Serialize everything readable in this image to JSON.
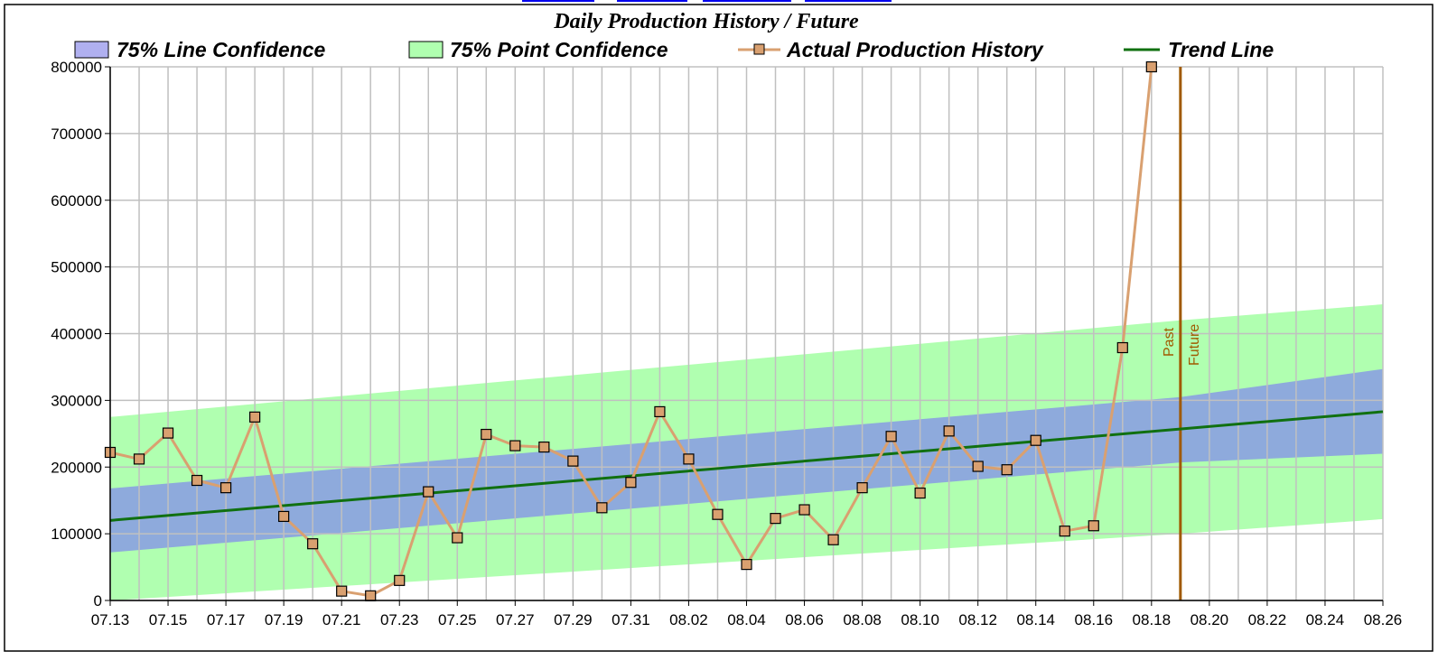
{
  "colors": {
    "line_confidence": "#8eaadc",
    "line_confidence_legend": "#b0b0f0",
    "point_confidence": "#b0ffb0",
    "actual": "#d9a070",
    "marker_fill": "#d9a070",
    "trend": "#107010",
    "divider": "#a05a00",
    "grid": "#c0c0c0"
  },
  "chart_data": {
    "type": "line",
    "title": "Daily Production History / Future",
    "legend": {
      "placement": "top",
      "items": [
        "75% Line Confidence",
        "75% Point Confidence",
        "Actual Production History",
        "Trend Line"
      ]
    },
    "x_start_date": "07.13",
    "x_tick_labels": [
      "07.13",
      "07.15",
      "07.17",
      "07.19",
      "07.21",
      "07.23",
      "07.25",
      "07.27",
      "07.29",
      "07.31",
      "08.02",
      "08.04",
      "08.06",
      "08.08",
      "08.10",
      "08.12",
      "08.14",
      "08.16",
      "08.18",
      "08.20",
      "08.22",
      "08.24",
      "08.26"
    ],
    "ylim": [
      0,
      800000
    ],
    "y_ticks": [
      0,
      100000,
      200000,
      300000,
      400000,
      500000,
      600000,
      700000,
      800000
    ],
    "grid": true,
    "series": [
      {
        "name": "Actual Production History",
        "type": "line-marker",
        "x": [
          "07.13",
          "07.14",
          "07.15",
          "07.16",
          "07.17",
          "07.18",
          "07.19",
          "07.20",
          "07.21",
          "07.22",
          "07.23",
          "07.24",
          "07.25",
          "07.26",
          "07.27",
          "07.28",
          "07.29",
          "07.30",
          "07.31",
          "08.01",
          "08.02",
          "08.03",
          "08.04",
          "08.05",
          "08.06",
          "08.07",
          "08.08",
          "08.09",
          "08.10",
          "08.11",
          "08.12",
          "08.13",
          "08.14",
          "08.15",
          "08.16",
          "08.17",
          "08.18"
        ],
        "values": [
          222000,
          212000,
          251000,
          180000,
          169000,
          275000,
          126000,
          85000,
          14000,
          7000,
          30000,
          163000,
          94000,
          249000,
          232000,
          230000,
          209000,
          139000,
          177000,
          283000,
          212000,
          129000,
          54000,
          123000,
          136000,
          91000,
          169000,
          246000,
          161000,
          254000,
          201000,
          196000,
          240000,
          104000,
          112000,
          379000,
          800000
        ]
      },
      {
        "name": "Trend Line",
        "type": "line",
        "x": [
          "07.13",
          "08.26"
        ],
        "values": [
          120000,
          283000
        ]
      },
      {
        "name": "75% Line Confidence",
        "type": "band",
        "x": [
          "07.13",
          "08.19",
          "08.26"
        ],
        "upper": [
          168000,
          305000,
          347000
        ],
        "lower": [
          72000,
          207000,
          220000
        ]
      },
      {
        "name": "75% Point Confidence",
        "type": "band",
        "x": [
          "07.13",
          "08.19",
          "08.26"
        ],
        "upper": [
          275000,
          420000,
          444000
        ],
        "lower": [
          0,
          100000,
          122000
        ]
      }
    ],
    "annotations": {
      "divider_x": "08.19",
      "past_label": "Past",
      "future_label": "Future"
    }
  }
}
